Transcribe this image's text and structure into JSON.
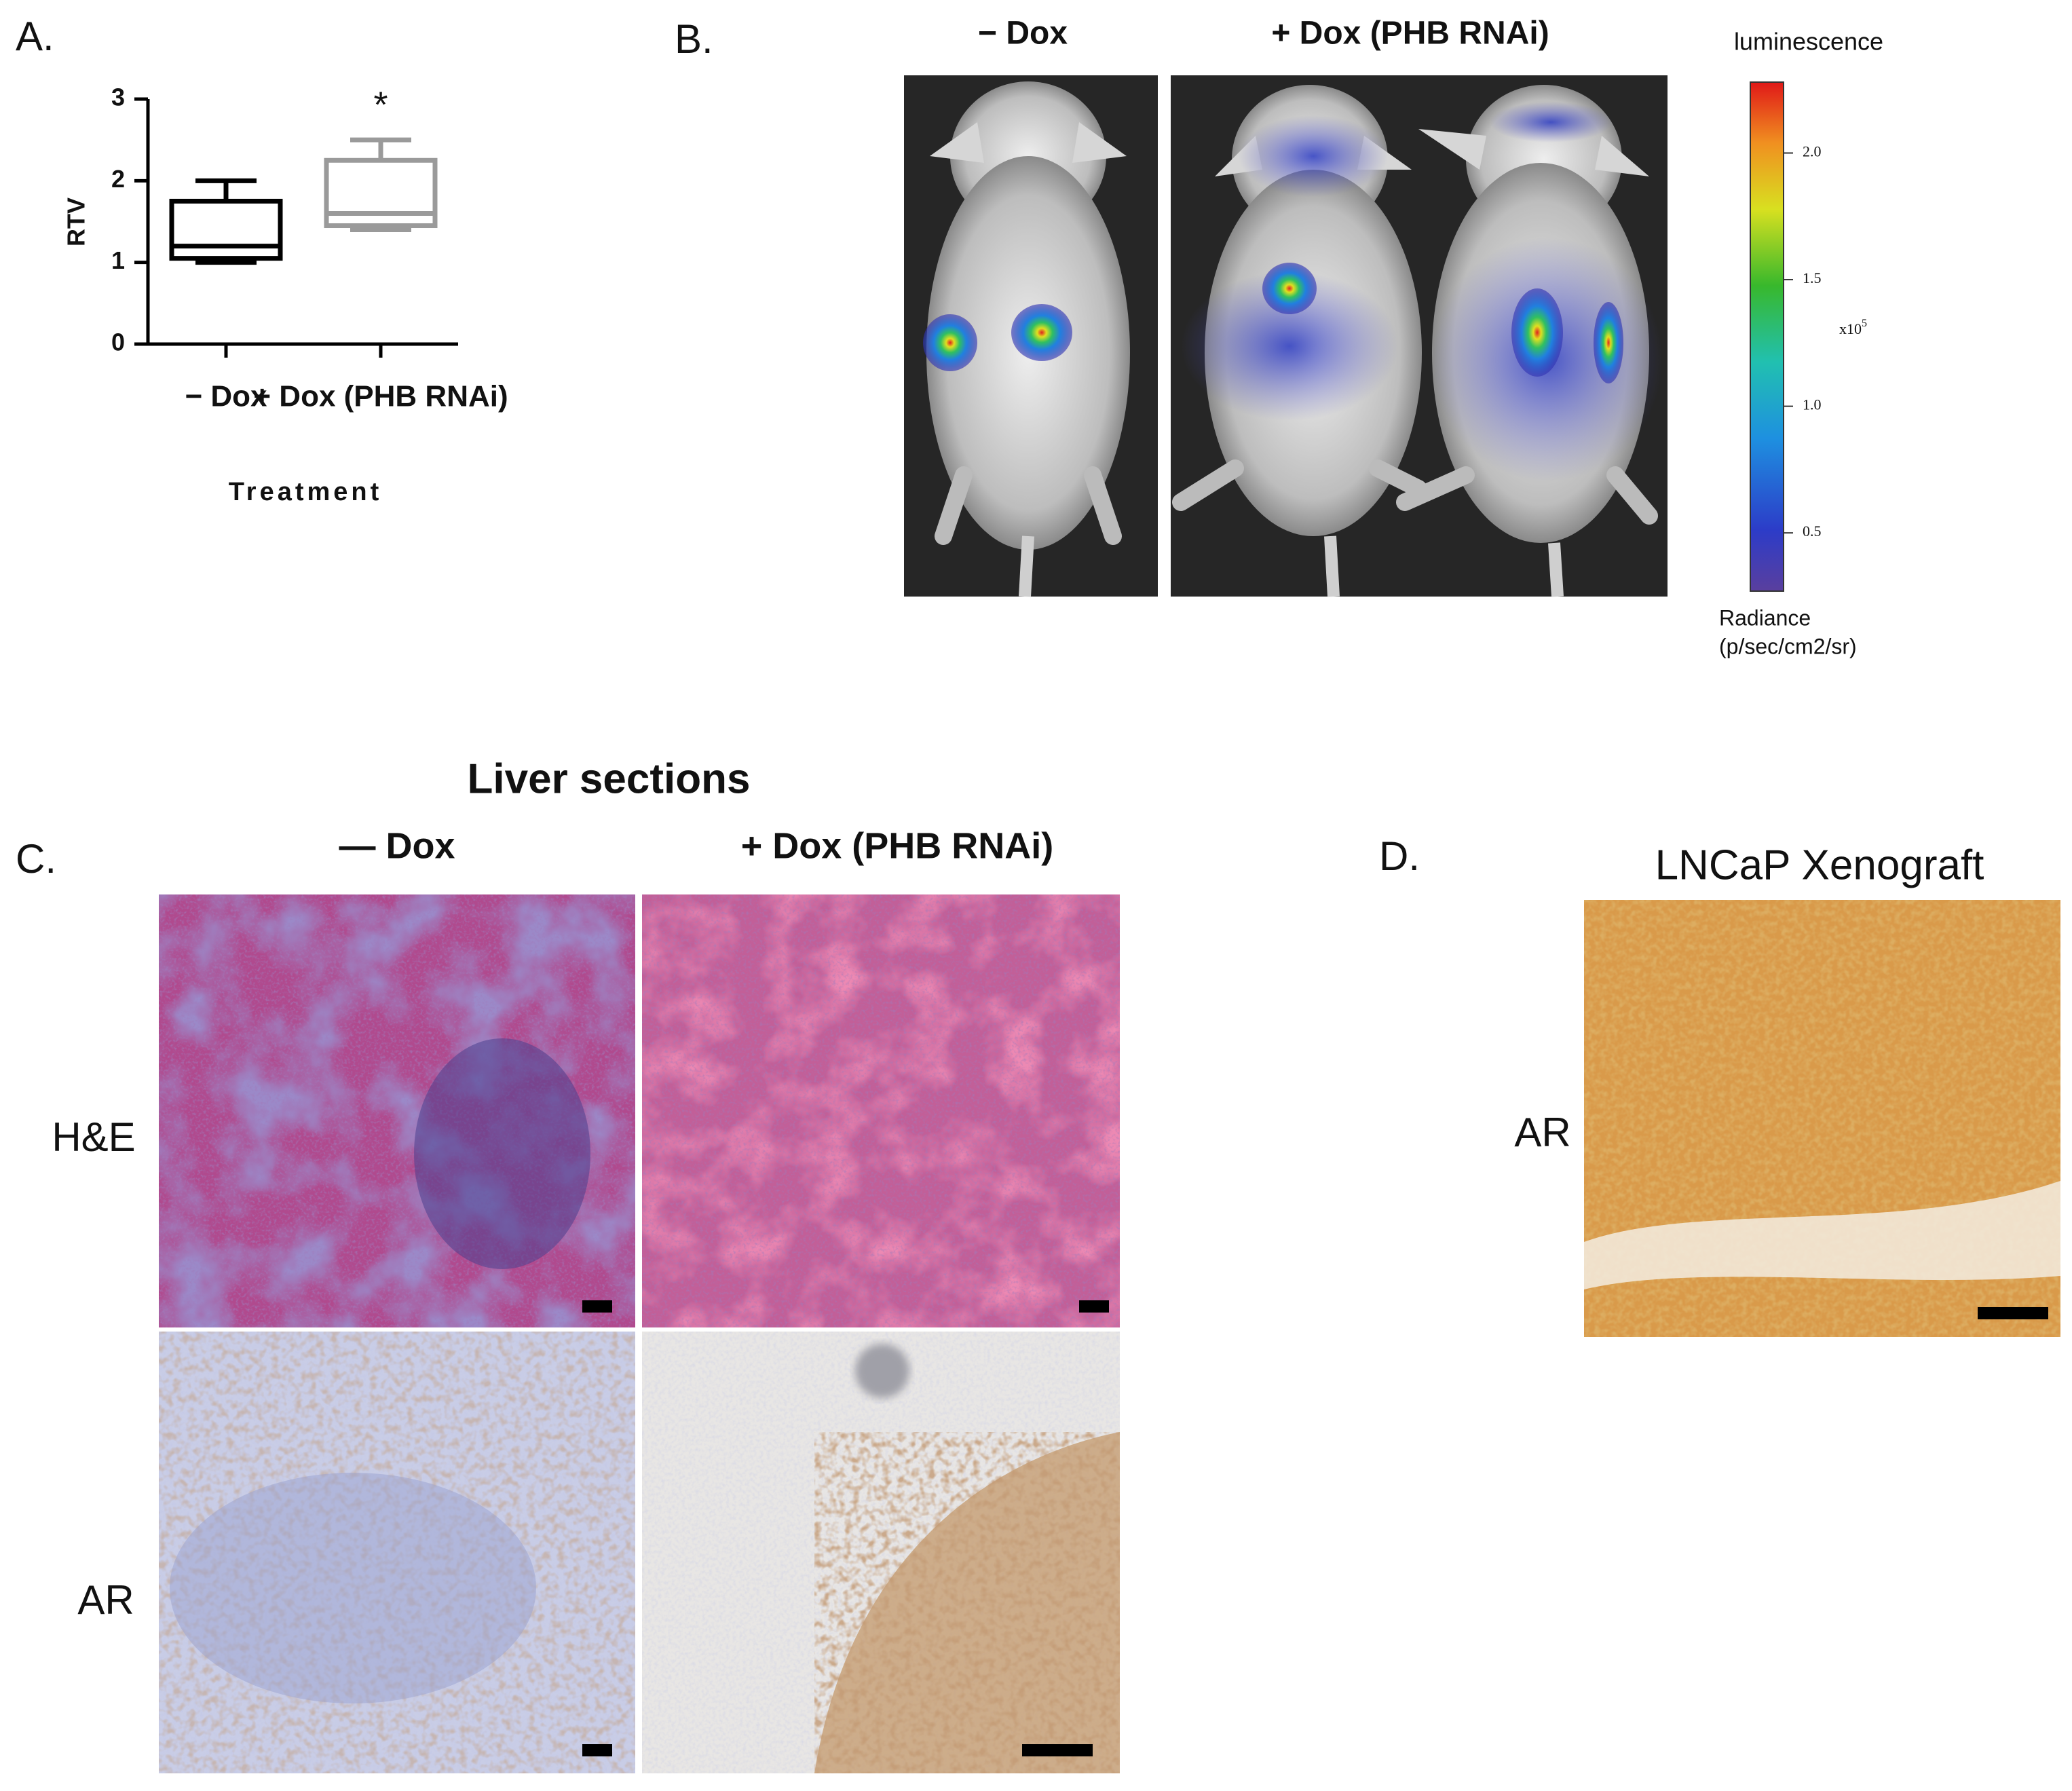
{
  "chart_data": {
    "type": "box",
    "panel_label": "A.",
    "categories": [
      "− Dox",
      "+ Dox (PHB RNAi)"
    ],
    "boxes": [
      {
        "min": 1.0,
        "q1": 1.05,
        "median": 1.2,
        "q3": 1.75,
        "max": 2.0
      },
      {
        "min": 1.4,
        "q1": 1.45,
        "median": 1.6,
        "q3": 2.25,
        "max": 2.5
      }
    ],
    "colors": [
      "#000000",
      "#9a9a9a"
    ],
    "ylabel": "RTV",
    "xlabel": "Treatment",
    "ylim": [
      0,
      3
    ],
    "yticks": [
      0,
      1,
      2,
      3
    ],
    "annotation": "*"
  },
  "panel_b": {
    "label": "B.",
    "columns": [
      "− Dox",
      "+ Dox (PHB RNAi)"
    ],
    "colorbar": {
      "title": "luminescence",
      "lim": [
        0.27,
        2.28
      ],
      "ticks": [
        0.5,
        {
          "value": 1.0,
          "label": "1.0"
        },
        1.5,
        {
          "value": 2.0,
          "label": "2.0"
        }
      ],
      "multiplier": "x10",
      "exponent": "5",
      "unit_lines": [
        "Radiance",
        "(p/sec/cm2/sr)"
      ]
    }
  },
  "panel_c": {
    "label": "C.",
    "title": "Liver sections",
    "columns": [
      "— Dox",
      "+ Dox (PHB RNAi)"
    ],
    "rows": [
      "H&E",
      "AR"
    ]
  },
  "panel_d": {
    "label": "D.",
    "title": "LNCaP Xenograft",
    "row": "AR"
  }
}
